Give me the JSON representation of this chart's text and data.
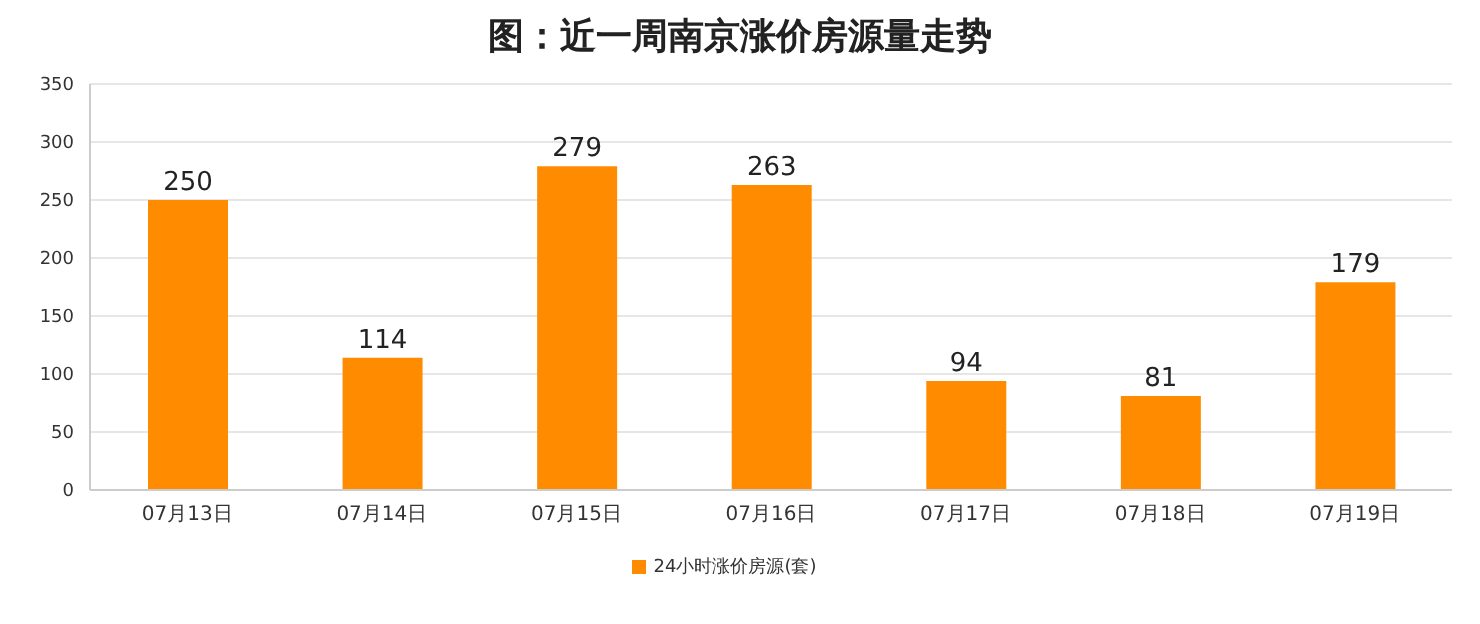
{
  "chart_data": {
    "type": "bar",
    "title": "图：近一周南京涨价房源量走势",
    "categories": [
      "07月13日",
      "07月14日",
      "07月15日",
      "07月16日",
      "07月17日",
      "07月18日",
      "07月19日"
    ],
    "series": [
      {
        "name": "24小时涨价房源(套)",
        "color": "#ff8c00",
        "values": [
          250,
          114,
          279,
          263,
          94,
          81,
          179
        ]
      }
    ],
    "ylim": [
      0,
      350
    ],
    "yticks": [
      0,
      50,
      100,
      150,
      200,
      250,
      300,
      350
    ],
    "grid": "y",
    "legend": "bottom",
    "data_labels": true
  }
}
